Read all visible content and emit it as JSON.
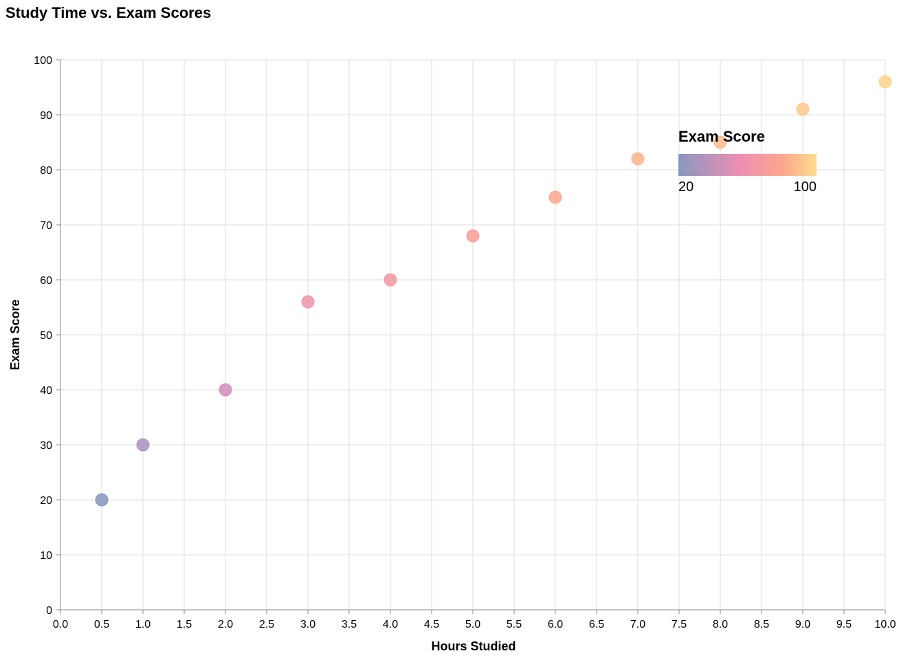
{
  "chart_data": {
    "type": "scatter",
    "title": "Study Time vs. Exam Scores",
    "xlabel": "Hours Studied",
    "ylabel": "Exam Score",
    "xlim": [
      0,
      10
    ],
    "ylim": [
      0,
      100
    ],
    "x_ticks": [
      "0.0",
      "0.5",
      "1.0",
      "1.5",
      "2.0",
      "2.5",
      "3.0",
      "3.5",
      "4.0",
      "4.5",
      "5.0",
      "5.5",
      "6.0",
      "6.5",
      "7.0",
      "7.5",
      "8.0",
      "8.5",
      "9.0",
      "9.5",
      "10.0"
    ],
    "y_ticks": [
      "0",
      "10",
      "20",
      "30",
      "40",
      "50",
      "60",
      "70",
      "80",
      "90",
      "100"
    ],
    "grid": true,
    "series": [
      {
        "x": [
          0.5,
          1,
          2,
          3,
          4,
          5,
          6,
          7,
          8,
          9,
          10
        ],
        "y": [
          20,
          30,
          40,
          56,
          60,
          68,
          75,
          82,
          85,
          91,
          96
        ]
      }
    ],
    "color_encoding": {
      "field": "Exam Score",
      "domain": [
        20,
        100
      ],
      "colors": [
        "#8a97c0",
        "#e98fbc",
        "#fca48e",
        "#fddc8f"
      ]
    },
    "legend": {
      "title": "Exam Score",
      "min_label": "20",
      "max_label": "100",
      "placement": "top-right"
    }
  }
}
